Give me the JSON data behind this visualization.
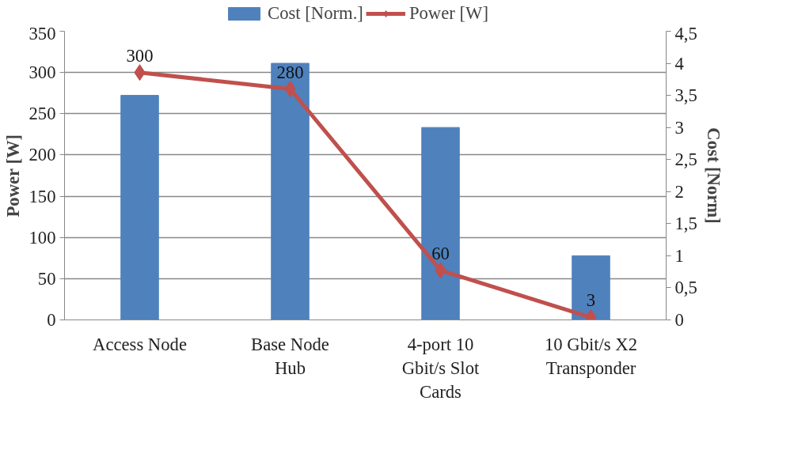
{
  "chart_data": {
    "type": "bar",
    "categories": [
      "Access Node",
      "Base Node Hub",
      "4-port 10 Gbit/s Slot Cards",
      "10 Gbit/s X2 Transponder"
    ],
    "series": [
      {
        "name": "Cost [Norm.]",
        "type": "bar",
        "axis": "y2",
        "color": "#4f81bd",
        "values": [
          3.5,
          4,
          3,
          1
        ]
      },
      {
        "name": "Power [W]",
        "type": "line",
        "axis": "y",
        "color": "#c0504d",
        "marker": "diamond",
        "values": [
          300,
          280,
          60,
          3
        ],
        "value_labels": [
          "300",
          "280",
          "60",
          "3"
        ]
      }
    ],
    "ylabel": "Power [W]",
    "y2label": "Cost [Norm]",
    "ylim": [
      0,
      350
    ],
    "yticks": [
      0,
      50,
      100,
      150,
      200,
      250,
      300,
      350
    ],
    "y2lim": [
      0,
      4.5
    ],
    "y2ticks": [
      0,
      {
        "value": 0.5,
        "label": "0,5"
      },
      1,
      {
        "value": 1.5,
        "label": "1,5"
      },
      2,
      {
        "value": 2.5,
        "label": "2,5"
      },
      3,
      {
        "value": 3.5,
        "label": "3,5"
      },
      4,
      {
        "value": 4.5,
        "label": "4,5"
      }
    ],
    "grid": "y",
    "legend": "top"
  }
}
